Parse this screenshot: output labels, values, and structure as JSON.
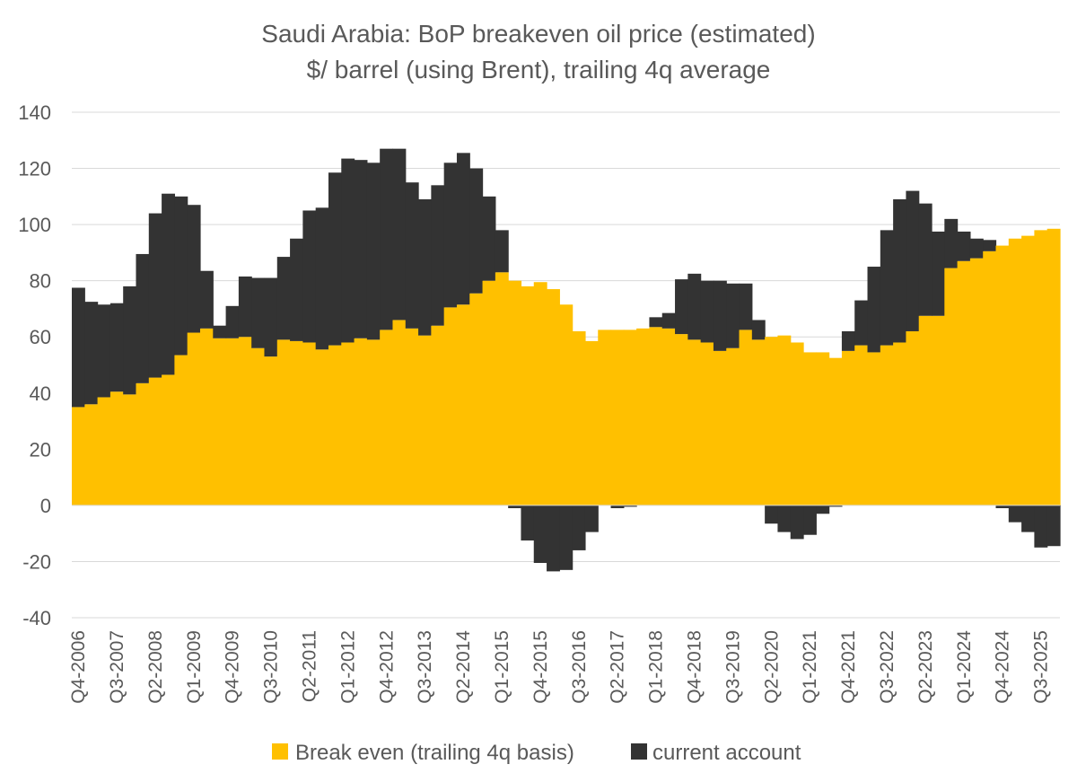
{
  "chart_data": {
    "type": "stacked-bar",
    "title": [
      "Saudi Arabia: BoP breakeven oil  price (estimated)",
      "$/ barrel (using Brent), trailing 4q average"
    ],
    "xlabel": "",
    "ylabel": "",
    "ylim": [
      -40,
      140
    ],
    "yticks": [
      "140",
      "120",
      "100",
      "80",
      "60",
      "40",
      "20",
      "0",
      "-20",
      "-40"
    ],
    "tick_labels": [
      "Q4-2006",
      "Q3-2007",
      "Q2-2008",
      "Q1-2009",
      "Q4-2009",
      "Q3-2010",
      "Q2-2011",
      "Q1-2012",
      "Q4-2012",
      "Q3-2013",
      "Q2-2014",
      "Q1-2015",
      "Q4-2015",
      "Q3-2016",
      "Q2-2017",
      "Q1-2018",
      "Q4-2018",
      "Q3-2019",
      "Q2-2020",
      "Q1-2021",
      "Q4-2021",
      "Q3-2022",
      "Q2-2023",
      "Q1-2024",
      "Q4-2024",
      "Q3-2025"
    ],
    "tick_every": 3,
    "grid": true,
    "legend_position": "bottom",
    "series": [
      {
        "name": "Break even (trailing 4q basis)",
        "color": "#FFC000",
        "values": [
          35,
          36,
          38.5,
          40.5,
          39.5,
          43.5,
          45.5,
          46.5,
          53.5,
          61.5,
          63,
          59.5,
          59.5,
          60,
          56,
          53,
          59,
          58.5,
          58,
          55.5,
          57,
          58,
          59.5,
          59,
          62.5,
          66,
          63,
          60.5,
          64,
          70.5,
          71.5,
          75.5,
          80,
          83,
          80,
          78,
          79.5,
          77,
          71.5,
          62,
          58.5,
          62.5,
          62.5,
          62.5,
          63,
          63.5,
          63,
          61,
          59,
          58,
          55,
          56,
          62.5,
          59,
          60,
          60.5,
          58,
          54.5,
          54.5,
          52.5,
          55,
          57,
          54.5,
          57,
          58,
          62,
          67.5,
          67.5,
          84.5,
          87,
          88,
          90.5,
          92.5,
          95,
          96,
          98,
          98.5
        ]
      },
      {
        "name": "current account",
        "color": "#333333",
        "values": [
          42.5,
          36.5,
          33,
          31.5,
          38.5,
          46,
          58.5,
          64.5,
          56.5,
          45.5,
          20.5,
          4.5,
          11.5,
          21.5,
          25,
          28,
          29.5,
          36.5,
          47,
          50.5,
          61.5,
          65.5,
          63.5,
          63,
          64.5,
          61,
          52,
          48.5,
          50,
          51.5,
          54,
          44.5,
          30,
          15,
          -1,
          -12.5,
          -20.5,
          -23.5,
          -23,
          -16,
          -9.5,
          0,
          -1,
          -0.5,
          0,
          3.5,
          5.5,
          19.5,
          23.5,
          22,
          25,
          23,
          16.5,
          7,
          -6.5,
          -9.5,
          -12,
          -10.5,
          -3,
          -0.5,
          7,
          16,
          30.5,
          41,
          51,
          50,
          40,
          30,
          17.5,
          10.5,
          7,
          4,
          -1,
          -6,
          -9.5,
          -15,
          -14.5
        ]
      }
    ]
  }
}
